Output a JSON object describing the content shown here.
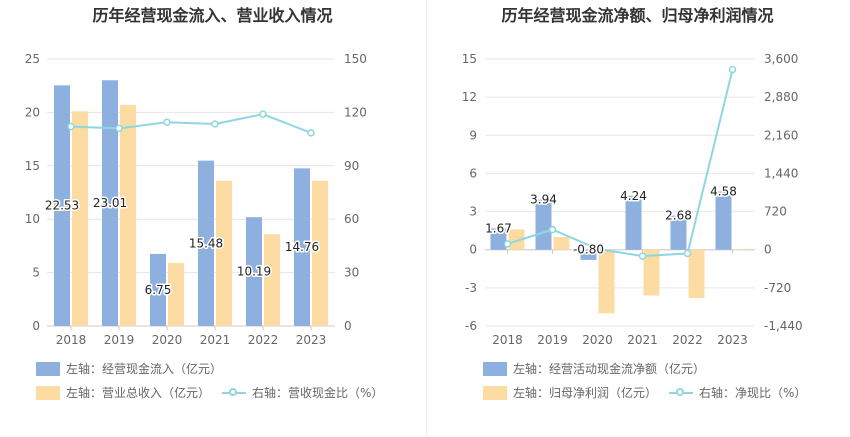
{
  "chart_data": [
    {
      "type": "bar",
      "title": "历年经营现金流入、营业收入情况",
      "categories": [
        "2018",
        "2019",
        "2020",
        "2021",
        "2022",
        "2023"
      ],
      "left_axis": {
        "ticks": [
          "0",
          "5",
          "10",
          "15",
          "20",
          "25"
        ],
        "range": [
          0,
          25
        ]
      },
      "right_axis": {
        "ticks": [
          "0",
          "30",
          "60",
          "90",
          "120",
          "150"
        ],
        "range": [
          0,
          150
        ]
      },
      "series": [
        {
          "name": "左轴：经营现金流入（亿元）",
          "kind": "bar",
          "axis": "left",
          "color": "#8eb0de",
          "values": [
            22.53,
            23.01,
            6.75,
            15.48,
            10.19,
            14.76
          ],
          "labels": [
            "22.53",
            "23.01",
            "6.75",
            "15.48",
            "10.19",
            "14.76"
          ]
        },
        {
          "name": "左轴：营业总收入（亿元）",
          "kind": "bar",
          "axis": "left",
          "color": "#fddca4",
          "values": [
            20.1,
            20.7,
            5.9,
            13.6,
            8.6,
            13.6
          ]
        },
        {
          "name": "右轴：营收现金比（%）",
          "kind": "line",
          "axis": "right",
          "color": "#8fd7e0",
          "values": [
            112,
            111,
            114.5,
            113.5,
            119,
            108.5
          ]
        }
      ],
      "grid": true,
      "legend_position": "bottom"
    },
    {
      "type": "bar",
      "title": "历年经营现金流净额、归母净利润情况",
      "categories": [
        "2018",
        "2019",
        "2020",
        "2021",
        "2022",
        "2023"
      ],
      "left_axis": {
        "ticks": [
          "-6",
          "-3",
          "0",
          "3",
          "6",
          "9",
          "12",
          "15"
        ],
        "range": [
          -6,
          15
        ]
      },
      "right_axis": {
        "ticks": [
          "-1,440",
          "-720",
          "0",
          "720",
          "1,440",
          "2,160",
          "2,880",
          "3,600"
        ],
        "range": [
          -1440,
          3600
        ]
      },
      "series": [
        {
          "name": "左轴：经营活动现金流净额（亿元）",
          "kind": "bar",
          "axis": "left",
          "color": "#8eb0de",
          "values": [
            1.67,
            3.94,
            -0.8,
            4.24,
            2.68,
            4.58
          ],
          "labels": [
            "1.67",
            "3.94",
            "-0.80",
            "4.24",
            "2.68",
            "4.58"
          ]
        },
        {
          "name": "左轴：归母净利润（亿元）",
          "kind": "bar",
          "axis": "left",
          "color": "#fddca4",
          "values": [
            1.6,
            1.0,
            -5.0,
            -3.6,
            -3.8,
            0.05
          ]
        },
        {
          "name": "右轴：净现比（%）",
          "kind": "line",
          "axis": "right",
          "color": "#8fd7e0",
          "values": [
            110,
            380,
            15,
            -120,
            -70,
            3400
          ]
        }
      ],
      "grid": true,
      "legend_position": "bottom"
    }
  ]
}
